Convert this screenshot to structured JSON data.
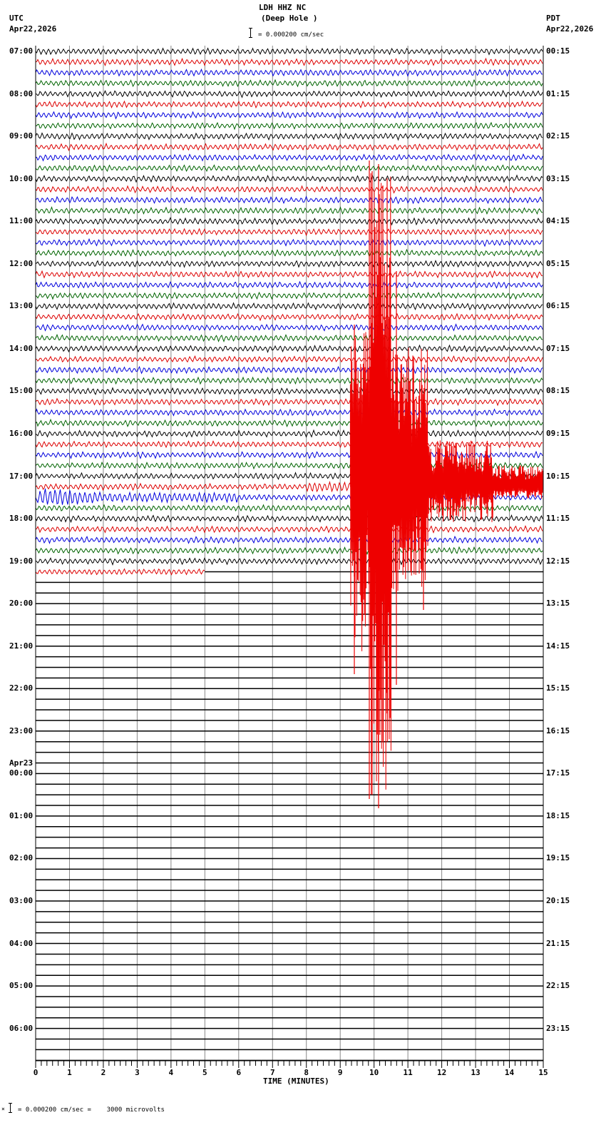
{
  "header": {
    "title": "LDH HHZ NC",
    "subtitle": "(Deep Hole )",
    "scale_text": "= 0.000200 cm/sec",
    "left_tz": "UTC",
    "left_date": "Apr22,2026",
    "right_tz": "PDT",
    "right_date": "Apr22,2026"
  },
  "footer": {
    "scale_text": "= 0.000200 cm/sec =    3000 microvolts",
    "marker": "⨯"
  },
  "chart_data": {
    "type": "line",
    "title": "LDH HHZ NC (Deep Hole )",
    "xlabel": "TIME (MINUTES)",
    "ylabel": "",
    "x_ticks": [
      0,
      1,
      2,
      3,
      4,
      5,
      6,
      7,
      8,
      9,
      10,
      11,
      12,
      13,
      14,
      15
    ],
    "xlim": [
      0,
      15
    ],
    "trace_colors": [
      "#000000",
      "#dd0000",
      "#0000dd",
      "#006400"
    ],
    "traces_per_hour": 4,
    "utc_hour_labels": [
      "07:00",
      "08:00",
      "09:00",
      "10:00",
      "11:00",
      "12:00",
      "13:00",
      "14:00",
      "15:00",
      "16:00",
      "17:00",
      "18:00",
      "19:00",
      "20:00",
      "21:00",
      "22:00",
      "23:00",
      "00:00",
      "01:00",
      "02:00",
      "03:00",
      "04:00",
      "05:00",
      "06:00"
    ],
    "date_change_label": {
      "before_hour_index": 17,
      "text": "Apr23"
    },
    "pdt_hour_labels": [
      "00:15",
      "01:15",
      "02:15",
      "03:15",
      "04:15",
      "05:15",
      "06:15",
      "07:15",
      "08:15",
      "09:15",
      "10:15",
      "11:15",
      "12:15",
      "13:15",
      "14:15",
      "15:15",
      "16:15",
      "17:15",
      "18:15",
      "19:15",
      "20:15",
      "21:15",
      "22:15",
      "23:15"
    ],
    "data_ends": {
      "hour_index": 12,
      "trace": 1,
      "minute": 5.0
    },
    "events": [
      {
        "description": "Large earthquake signal (red trace)",
        "hour": "17:00 UTC",
        "trace": 1,
        "onset_minute": 9.3,
        "peak_minutes": [
          9.9,
          10.1,
          10.3
        ],
        "max_spike_top_y": 225,
        "max_spike_bottom_y": 1133
      },
      {
        "description": "Precursor noise burst",
        "hour": "17:00 UTC",
        "trace": 1,
        "start_minute": 8.0,
        "end_minute": 9.3
      },
      {
        "description": "High-amplitude blue noise",
        "hour": "17:00 UTC",
        "trace": 2,
        "start_minute": 0.0,
        "end_minute": 2.2
      }
    ]
  }
}
